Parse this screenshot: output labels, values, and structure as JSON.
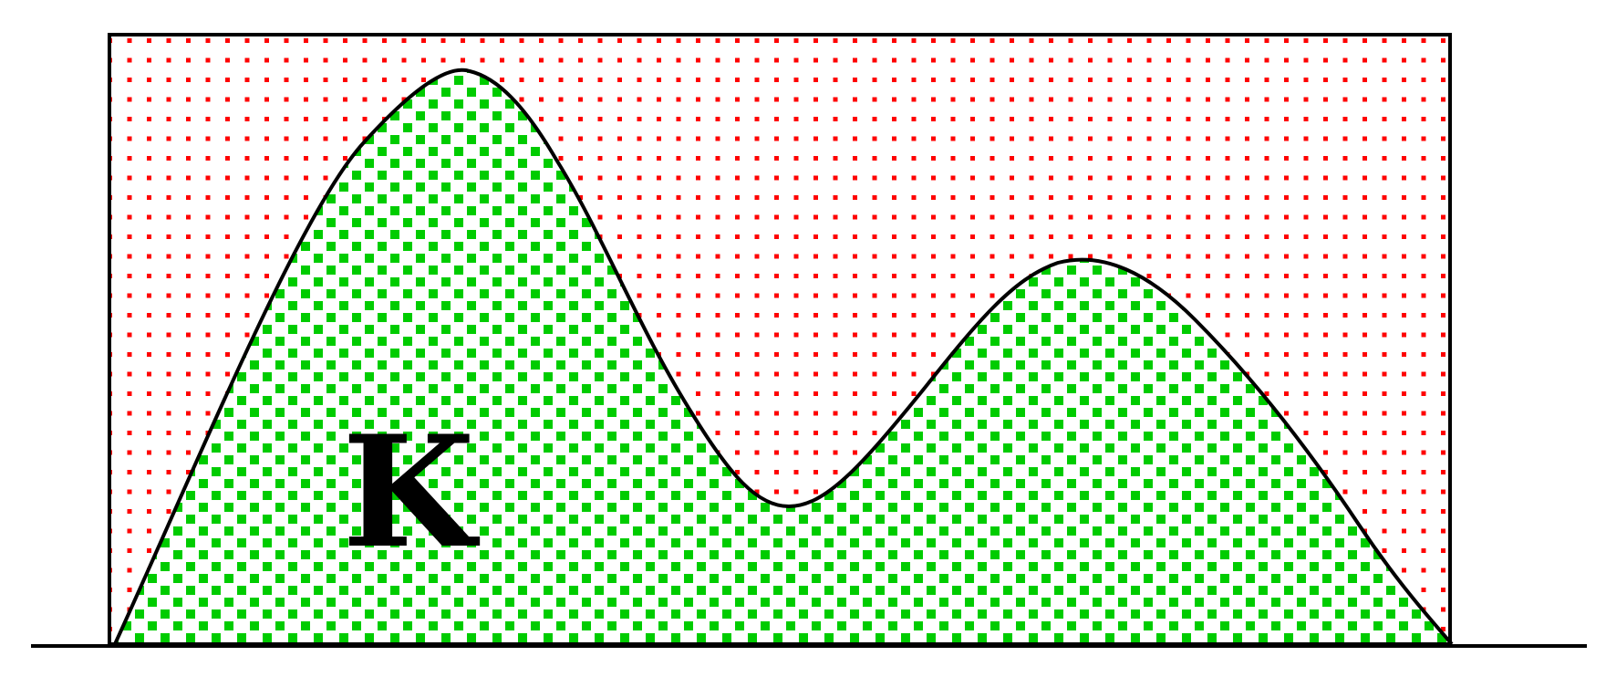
{
  "diagram": {
    "region_label": "K",
    "colors": {
      "background": "#ffffff",
      "outline": "#000000",
      "outer_dots": "#ff0000",
      "region_fill": "#00cc00"
    },
    "elements": {
      "outer_pattern": "red-dotted-pattern",
      "region_pattern": "green-square-pattern",
      "boundary": "two-peaked-curve"
    }
  }
}
